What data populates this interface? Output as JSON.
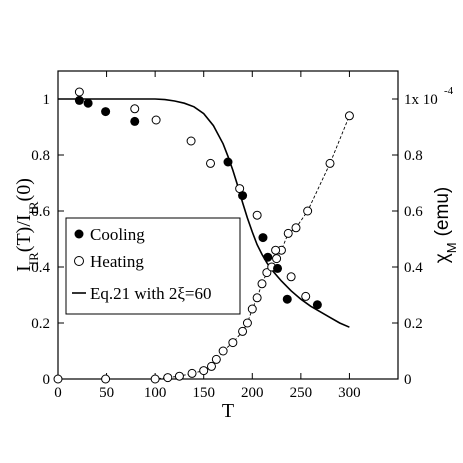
{
  "chart_data": {
    "type": "scatter",
    "xlabel": "T",
    "ylabel_left": "I_IR(T)/I_IR(0)",
    "ylabel_left_parts": {
      "main_1": "I",
      "sub_1": "IR",
      "mid": "(T)/I",
      "sub_2": "IR",
      "tail": "(0)"
    },
    "ylabel_right": "χ_M (emu)",
    "ylabel_right_parts": {
      "main": "χ",
      "sub": "M",
      "tail": "(emu)"
    },
    "xlim": [
      0,
      350
    ],
    "ylim_left": [
      0,
      1.1
    ],
    "ylim_right": [
      0,
      1.1
    ],
    "x_ticks": [
      0,
      50,
      100,
      150,
      200,
      250,
      300
    ],
    "x_tick_labels": [
      "0",
      "50",
      "100",
      "150",
      "200",
      "250",
      "300"
    ],
    "y_left_ticks": [
      0,
      0.2,
      0.4,
      0.6,
      0.8,
      1.0
    ],
    "y_left_tick_labels": [
      "0",
      "0.2",
      "0.4",
      "0.6",
      "0.8",
      "1"
    ],
    "y_right_ticks": [
      0,
      0.2,
      0.4,
      0.6,
      0.8,
      1.0
    ],
    "y_right_tick_labels": [
      "0",
      "0.2",
      "0.4",
      "0.6",
      "0.8",
      "1x 10"
    ],
    "y_right_exponent": "-4",
    "legend": [
      {
        "marker": "filled-circle",
        "label": "Cooling"
      },
      {
        "marker": "open-circle",
        "label": "Heating"
      },
      {
        "marker": "line",
        "label": "Eq.21 with 2ξ=60"
      }
    ],
    "legend_position": "lower-left",
    "series": [
      {
        "name": "Cooling",
        "marker": "filled-circle",
        "axis": "left",
        "x": [
          22,
          31,
          49,
          79,
          175,
          190,
          211,
          216,
          226,
          236,
          267
        ],
        "y": [
          0.995,
          0.985,
          0.955,
          0.92,
          0.775,
          0.655,
          0.505,
          0.435,
          0.395,
          0.285,
          0.265
        ]
      },
      {
        "name": "Heating",
        "marker": "open-circle",
        "axis": "left",
        "x": [
          22,
          79,
          101,
          137,
          157,
          187,
          205,
          224,
          240,
          255
        ],
        "y": [
          1.025,
          0.965,
          0.925,
          0.85,
          0.77,
          0.68,
          0.585,
          0.46,
          0.365,
          0.295
        ]
      },
      {
        "name": "χ_M",
        "marker": "open-circle-dashed",
        "axis": "right",
        "x": [
          0,
          49,
          100,
          113,
          125,
          138,
          150,
          158,
          163,
          170,
          180,
          190,
          195,
          200,
          205,
          210,
          215,
          220,
          225,
          230,
          237,
          245,
          257,
          280,
          300
        ],
        "y": [
          0.0,
          0.0,
          0.0,
          0.005,
          0.01,
          0.02,
          0.03,
          0.045,
          0.07,
          0.1,
          0.13,
          0.17,
          0.2,
          0.25,
          0.29,
          0.34,
          0.38,
          0.4,
          0.43,
          0.46,
          0.52,
          0.54,
          0.6,
          0.77,
          0.94
        ]
      },
      {
        "name": "Eq.21 with 2ξ=60",
        "marker": "line",
        "axis": "left",
        "x": [
          0,
          100,
          110,
          120,
          130,
          140,
          150,
          160,
          170,
          175,
          180,
          185,
          190,
          195,
          200,
          205,
          210,
          215,
          220,
          230,
          240,
          250,
          260,
          270,
          280,
          290,
          300
        ],
        "y": [
          1.0,
          1.0,
          0.998,
          0.993,
          0.985,
          0.972,
          0.948,
          0.905,
          0.84,
          0.795,
          0.745,
          0.69,
          0.63,
          0.575,
          0.525,
          0.48,
          0.445,
          0.415,
          0.39,
          0.35,
          0.315,
          0.285,
          0.26,
          0.24,
          0.22,
          0.2,
          0.185
        ]
      }
    ]
  }
}
